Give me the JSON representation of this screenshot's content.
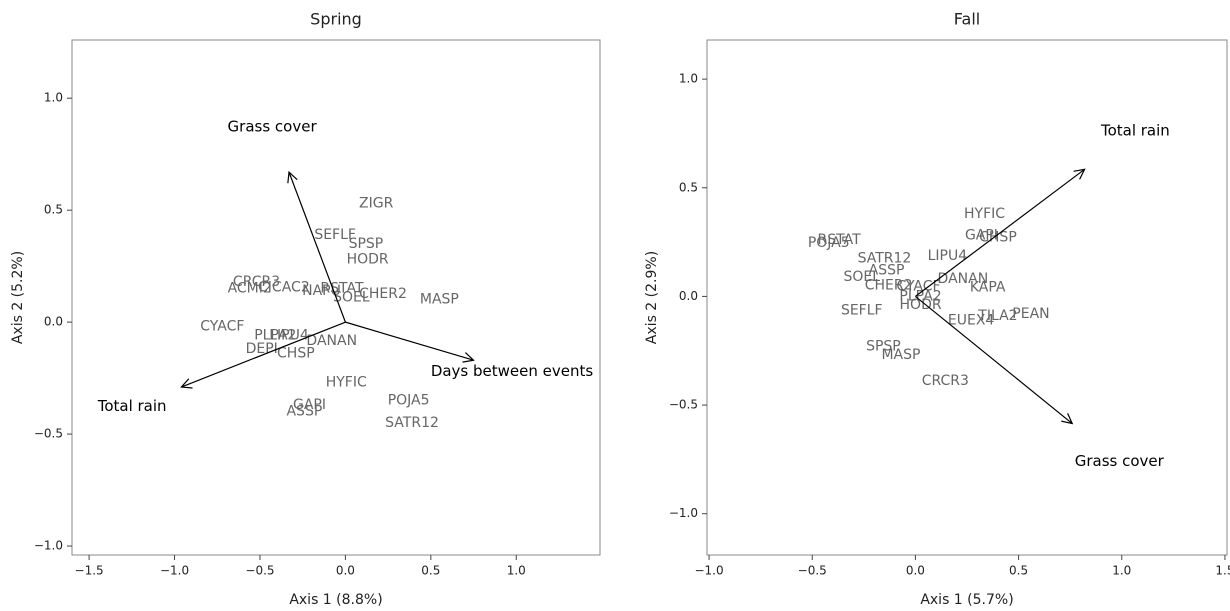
{
  "chart_data": [
    {
      "type": "biplot",
      "title": "Spring",
      "x_label": "Axis 1 (8.8%)",
      "y_label": "Axis 2 (5.2%)",
      "xlim": [
        -1.6,
        1.49
      ],
      "ylim": [
        -1.04,
        1.26
      ],
      "xticks": [
        {
          "value": -1.5,
          "label": "−1.5"
        },
        {
          "value": -1.0,
          "label": "−1.0"
        },
        {
          "value": -0.5,
          "label": "−0.5"
        },
        {
          "value": 0,
          "label": "0.0"
        },
        {
          "value": 0.5,
          "label": "0.5"
        },
        {
          "value": 1.0,
          "label": "1.0"
        }
      ],
      "yticks": [
        {
          "value": -1.0,
          "label": "−1.0"
        },
        {
          "value": -0.5,
          "label": "−0.5"
        },
        {
          "value": 0,
          "label": "0.0"
        },
        {
          "value": 0.5,
          "label": "0.5"
        },
        {
          "value": 1.0,
          "label": "1.0"
        }
      ],
      "points": {
        "color": "#666666",
        "labels": [
          "ZIGR",
          "SEFLF",
          "SPSP",
          "HODR",
          "CRCR3",
          "ACMI2",
          "CICAC2",
          "NAPU",
          "RSTAT",
          "SOEL",
          "CHER2",
          "MASP",
          "CYACF",
          "PLPA2",
          "LIPU4",
          "DANAN",
          "DEPI",
          "CHSP",
          "HYFIC",
          "POJA5",
          "GAPI",
          "ASSP",
          "SATR12"
        ],
        "x": [
          0.18,
          -0.06,
          0.12,
          0.13,
          -0.52,
          -0.56,
          -0.36,
          -0.14,
          -0.02,
          0.035,
          0.22,
          0.55,
          -0.72,
          -0.41,
          -0.33,
          -0.08,
          -0.49,
          -0.29,
          0.005,
          0.37,
          -0.21,
          -0.24,
          0.39
        ],
        "y": [
          0.53,
          0.39,
          0.35,
          0.28,
          0.18,
          0.15,
          0.155,
          0.14,
          0.15,
          0.11,
          0.125,
          0.1,
          -0.02,
          -0.06,
          -0.06,
          -0.085,
          -0.12,
          -0.14,
          -0.27,
          -0.35,
          -0.37,
          -0.4,
          -0.45
        ]
      },
      "arrows": {
        "color": "#000000",
        "labels": [
          "Grass cover",
          "Days between events",
          "Total rain"
        ],
        "x": [
          -0.33,
          0.75,
          -0.96
        ],
        "y": [
          0.67,
          -0.17,
          -0.29
        ]
      }
    },
    {
      "type": "biplot",
      "title": "Fall",
      "x_label": "Axis 1 (5.7%)",
      "y_label": "Axis 2 (2.9%)",
      "xlim": [
        -1.01,
        1.51
      ],
      "ylim": [
        -1.19,
        1.18
      ],
      "xticks": [
        {
          "value": -1.0,
          "label": "−1.0"
        },
        {
          "value": -0.5,
          "label": "−0.5"
        },
        {
          "value": 0,
          "label": "0.0"
        },
        {
          "value": 0.5,
          "label": "0.5"
        },
        {
          "value": 1.0,
          "label": "1.0"
        },
        {
          "value": 1.5,
          "label": "1.5"
        }
      ],
      "yticks": [
        {
          "value": -1.0,
          "label": "−1.0"
        },
        {
          "value": -0.5,
          "label": "−0.5"
        },
        {
          "value": 0,
          "label": "0.0"
        },
        {
          "value": 0.5,
          "label": "0.5"
        },
        {
          "value": 1.0,
          "label": "1.0"
        }
      ],
      "points": {
        "color": "#666666",
        "labels": [
          "HYFIC",
          "GAPI",
          "CHSP",
          "RSTAT",
          "POJA5",
          "SATR12",
          "LIPU4",
          "ASSP",
          "SOEL",
          "DANAN",
          "CHER2",
          "CYACF",
          "KAPA",
          "PLPA2",
          "HODR",
          "SEFLF",
          "TILA2",
          "PEAN",
          "EUEX4",
          "SPSP",
          "MASP",
          "CRCR3"
        ],
        "x": [
          0.335,
          0.32,
          0.4,
          -0.37,
          -0.42,
          -0.15,
          0.155,
          -0.14,
          -0.26,
          0.23,
          -0.13,
          0.015,
          0.35,
          0.025,
          0.025,
          -0.26,
          0.4,
          0.56,
          0.27,
          -0.155,
          -0.07,
          0.145
        ],
        "y": [
          0.38,
          0.28,
          0.27,
          0.26,
          0.245,
          0.175,
          0.185,
          0.12,
          0.09,
          0.08,
          0.05,
          0.045,
          0.04,
          0.0,
          -0.04,
          -0.065,
          -0.09,
          -0.08,
          -0.11,
          -0.23,
          -0.27,
          -0.39
        ]
      },
      "arrows": {
        "color": "#000000",
        "labels": [
          "Total rain",
          "Grass cover"
        ],
        "x": [
          0.82,
          0.76
        ],
        "y": [
          0.585,
          -0.585
        ]
      }
    }
  ]
}
